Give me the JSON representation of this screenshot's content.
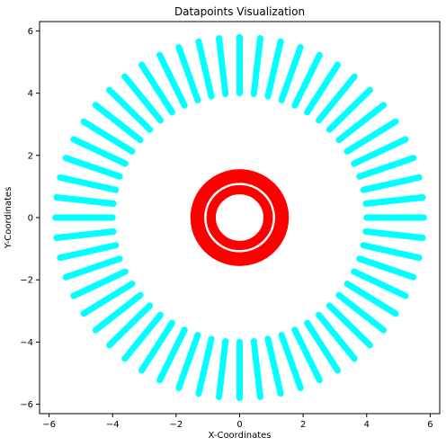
{
  "chart_data": {
    "type": "scatter",
    "title": "Datapoints Visualization",
    "xlabel": "X-Coordinates",
    "ylabel": "Y-Coordinates",
    "xlim": [
      -6.3,
      6.3
    ],
    "ylim": [
      -6.3,
      6.3
    ],
    "xticks": [
      -6,
      -4,
      -2,
      0,
      2,
      4,
      6
    ],
    "yticks": [
      -6,
      -4,
      -2,
      0,
      2,
      4,
      6
    ],
    "xtick_labels": [
      "−6",
      "−4",
      "−2",
      "0",
      "2",
      "4",
      "6"
    ],
    "ytick_labels": [
      "−6",
      "−4",
      "−2",
      "0",
      "2",
      "4",
      "6"
    ],
    "grid": false,
    "legend": "none",
    "series": [
      {
        "color": "#00ffff",
        "shape": "radial-spokes",
        "spoke_count": 56,
        "inner_radius": 4.0,
        "outer_radius": 5.8
      },
      {
        "color": "#ff0000",
        "shape": "concentric-rings",
        "rings": [
          {
            "inner_radius": 1.05,
            "outer_radius": 1.55
          },
          {
            "inner_radius": 0.75,
            "outer_radius": 1.1
          }
        ]
      }
    ]
  }
}
